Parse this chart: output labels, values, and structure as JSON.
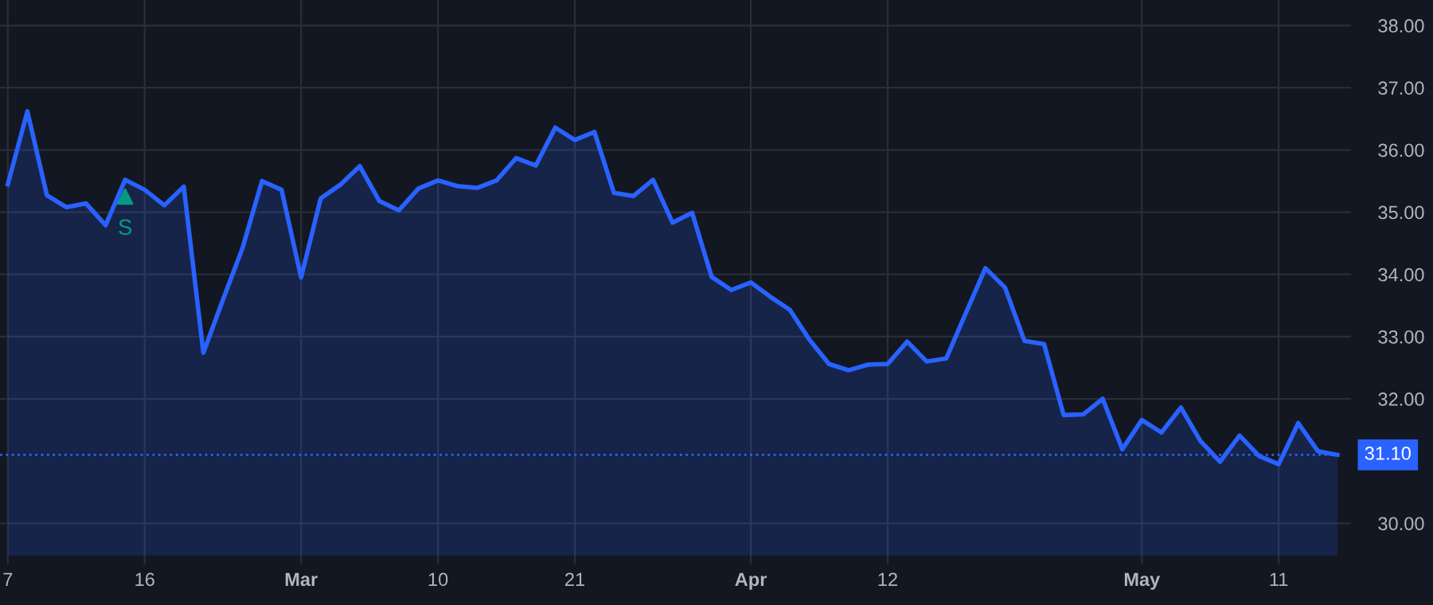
{
  "chart_data": {
    "type": "area",
    "categories": [
      "7",
      null,
      null,
      null,
      null,
      null,
      null,
      "16",
      null,
      null,
      null,
      null,
      null,
      null,
      null,
      "Mar",
      null,
      null,
      null,
      null,
      null,
      null,
      "10",
      null,
      null,
      null,
      null,
      null,
      null,
      "21",
      null,
      null,
      null,
      null,
      null,
      null,
      null,
      null,
      "Apr",
      null,
      null,
      null,
      null,
      null,
      null,
      "12",
      null,
      null,
      null,
      null,
      null,
      null,
      null,
      null,
      null,
      null,
      null,
      null,
      "May",
      null,
      null,
      null,
      null,
      null,
      null,
      "11",
      null,
      null,
      null
    ],
    "series": [
      {
        "color": "#2962ff",
        "values": [
          35.45,
          36.62,
          35.27,
          35.08,
          35.14,
          34.79,
          35.52,
          35.36,
          35.11,
          35.41,
          32.74,
          33.59,
          34.42,
          35.5,
          35.36,
          33.95,
          35.22,
          35.44,
          35.74,
          35.18,
          35.03,
          35.38,
          35.51,
          35.42,
          35.39,
          35.51,
          35.87,
          35.75,
          36.36,
          36.16,
          36.29,
          35.31,
          35.26,
          35.52,
          34.83,
          34.99,
          33.96,
          33.75,
          33.87,
          33.64,
          33.43,
          32.95,
          32.56,
          32.46,
          32.55,
          32.56,
          32.92,
          32.6,
          32.65,
          33.38,
          34.1,
          33.79,
          32.93,
          32.88,
          31.74,
          31.75,
          32.0,
          31.19,
          31.66,
          31.46,
          31.86,
          31.32,
          30.99,
          31.41,
          31.08,
          30.95,
          31.61,
          31.16,
          31.1
        ]
      },
      {
        "type": "scatter",
        "color": "#089981",
        "marker": "triangle",
        "values": [
          null,
          null,
          null,
          null,
          null,
          null,
          35.25,
          null,
          null,
          null,
          null,
          null,
          null,
          null,
          null,
          null,
          null,
          null,
          null,
          null,
          null,
          null,
          null,
          null,
          null,
          null,
          null,
          null,
          null,
          null,
          null,
          null,
          null,
          null,
          null,
          null,
          null,
          null,
          null,
          null,
          null,
          null,
          null,
          null,
          null,
          null,
          null,
          null,
          null,
          null,
          null,
          null,
          null,
          null,
          null,
          null,
          null,
          null,
          null,
          null,
          null,
          null,
          null,
          null,
          null,
          null,
          null,
          null,
          null
        ],
        "value_labels": [
          null,
          null,
          null,
          null,
          null,
          null,
          "S",
          null,
          null,
          null,
          null,
          null,
          null,
          null,
          null,
          null,
          null,
          null,
          null,
          null,
          null,
          null,
          null,
          null,
          null,
          null,
          null,
          null,
          null,
          null,
          null,
          null,
          null,
          null,
          null,
          null,
          null,
          null,
          null,
          null,
          null,
          null,
          null,
          null,
          null,
          null,
          null,
          null,
          null,
          null,
          null,
          null,
          null,
          null,
          null,
          null,
          null,
          null,
          null,
          null,
          null,
          null,
          null,
          null,
          null,
          null,
          null,
          null,
          null
        ]
      }
    ],
    "ylim": [
      29.48,
      38.41
    ],
    "yticks": [
      {
        "value": 30,
        "label": "30.00"
      },
      {
        "value": 32,
        "label": "32.00"
      },
      {
        "value": 33,
        "label": "33.00"
      },
      {
        "value": 34,
        "label": "34.00"
      },
      {
        "value": 35,
        "label": "35.00"
      },
      {
        "value": 36,
        "label": "36.00"
      },
      {
        "value": 37,
        "label": "37.00"
      },
      {
        "value": 38,
        "label": "38.00"
      }
    ],
    "ref_lines": [
      {
        "axis": "y",
        "value": 31.1,
        "label": "31.10",
        "color": "#2962ff",
        "line_style": "dotted"
      }
    ],
    "grid": true,
    "legend": false
  }
}
